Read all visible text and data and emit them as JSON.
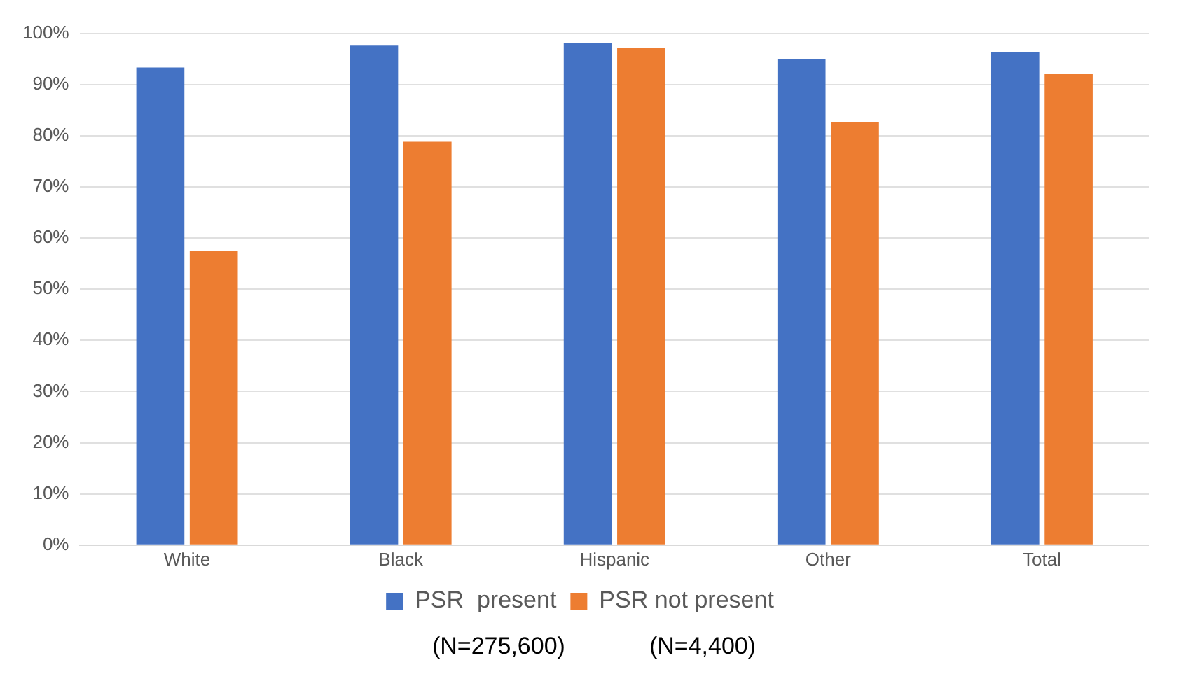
{
  "chart_data": {
    "type": "bar",
    "categories": [
      "White",
      "Black",
      "Hispanic",
      "Other",
      "Total"
    ],
    "series": [
      {
        "name": "PSR  present",
        "color": "#4472c4",
        "values": [
          93.3,
          97.6,
          98.1,
          95,
          96.3
        ]
      },
      {
        "name": "PSR not present",
        "color": "#ed7d31",
        "values": [
          57.4,
          78.8,
          97.1,
          82.7,
          92
        ]
      }
    ],
    "ylim": [
      0,
      100
    ],
    "yticks": [
      {
        "value": 0,
        "label": "0%"
      },
      {
        "value": 10,
        "label": "10%"
      },
      {
        "value": 20,
        "label": "20%"
      },
      {
        "value": 30,
        "label": "30%"
      },
      {
        "value": 40,
        "label": "40%"
      },
      {
        "value": 50,
        "label": "50%"
      },
      {
        "value": 60,
        "label": "60%"
      },
      {
        "value": 70,
        "label": "70%"
      },
      {
        "value": 80,
        "label": "80%"
      },
      {
        "value": 90,
        "label": "90%"
      },
      {
        "value": 100,
        "label": "100%"
      }
    ],
    "grid": "y",
    "legend": "bottom",
    "annotations": [
      "(N=275,600)",
      "(N=4,400)"
    ]
  }
}
